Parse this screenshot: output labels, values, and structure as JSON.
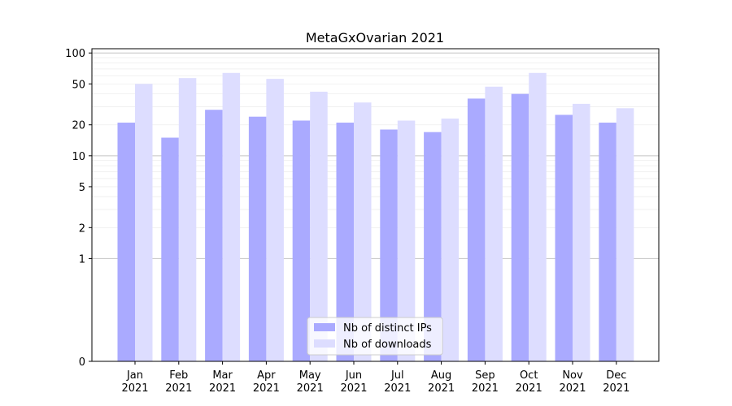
{
  "chart_data": {
    "type": "bar",
    "title": "MetaGxOvarian 2021",
    "xlabel": "",
    "ylabel": "",
    "yscale": "symlog",
    "ylim": [
      0,
      110
    ],
    "yticks": [
      0,
      1,
      2,
      5,
      10,
      20,
      50,
      100
    ],
    "categories": [
      [
        "Jan",
        "2021"
      ],
      [
        "Feb",
        "2021"
      ],
      [
        "Mar",
        "2021"
      ],
      [
        "Apr",
        "2021"
      ],
      [
        "May",
        "2021"
      ],
      [
        "Jun",
        "2021"
      ],
      [
        "Jul",
        "2021"
      ],
      [
        "Aug",
        "2021"
      ],
      [
        "Sep",
        "2021"
      ],
      [
        "Oct",
        "2021"
      ],
      [
        "Nov",
        "2021"
      ],
      [
        "Dec",
        "2021"
      ]
    ],
    "series": [
      {
        "name": "Nb of distinct IPs",
        "color": "#aaaaff",
        "values": [
          21,
          15,
          28,
          24,
          22,
          21,
          18,
          17,
          36,
          40,
          25,
          21
        ]
      },
      {
        "name": "Nb of downloads",
        "color": "#ddddff",
        "values": [
          50,
          57,
          64,
          56,
          42,
          33,
          22,
          23,
          47,
          64,
          32,
          29
        ]
      }
    ],
    "grid": true,
    "legend": "bottom-center"
  }
}
